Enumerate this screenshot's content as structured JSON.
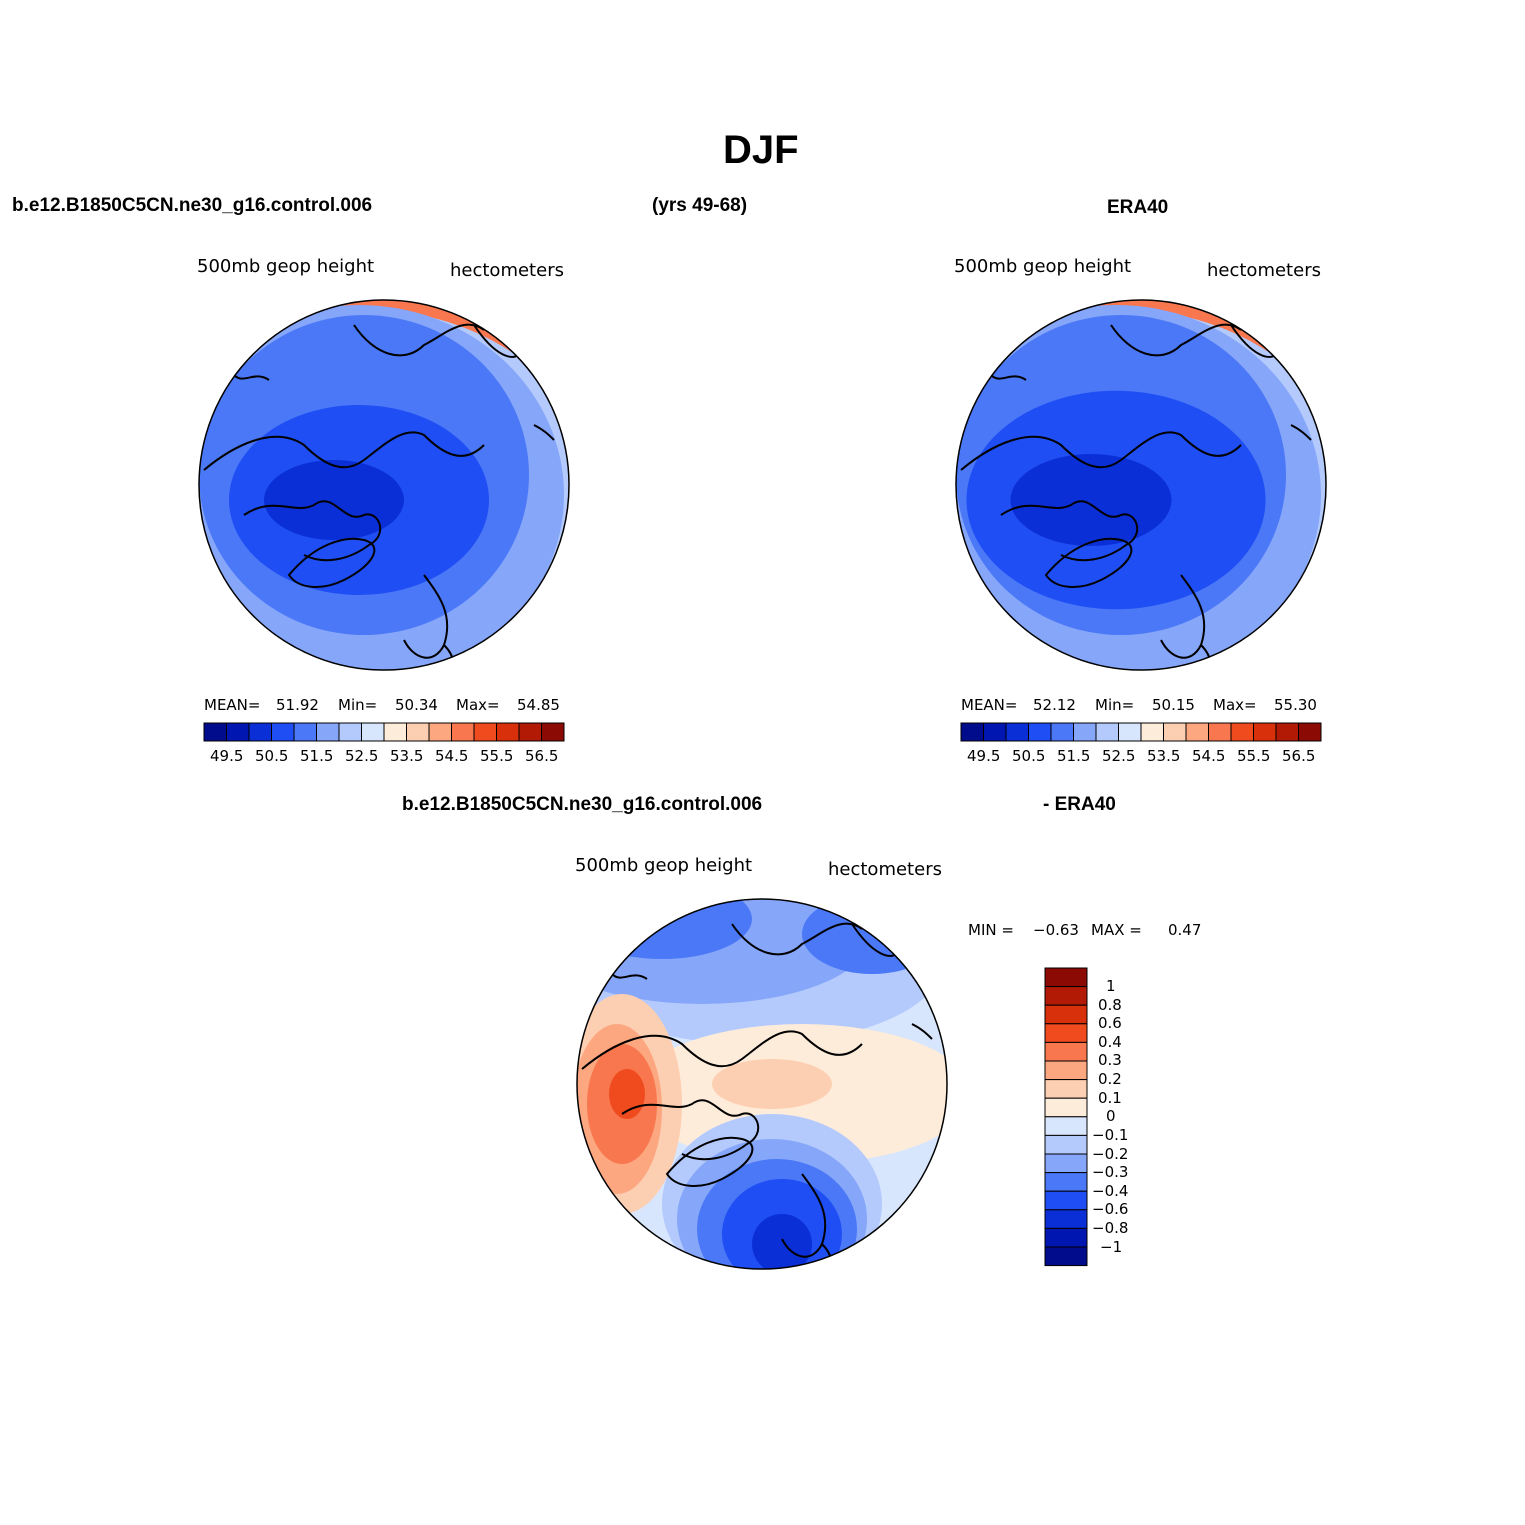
{
  "chart_data": {
    "type": "contour-map",
    "title": "DJF",
    "season": "DJF",
    "panels": [
      {
        "id": "model",
        "case": "b.e12.B1850C5CN.ne30_g16.control.006",
        "years": "(yrs 49-68)",
        "variable": "500mb geop height",
        "units": "hectometers",
        "stats": {
          "mean_label": "MEAN=",
          "mean": "51.92",
          "min_label": "Min=",
          "min": "50.34",
          "max_label": "Max=",
          "max": "54.85"
        },
        "levels": [
          "49.5",
          "50.5",
          "51.5",
          "52.5",
          "53.5",
          "54.5",
          "55.5",
          "56.5"
        ]
      },
      {
        "id": "obs",
        "case": "ERA40",
        "variable": "500mb geop height",
        "units": "hectometers",
        "stats": {
          "mean_label": "MEAN=",
          "mean": "52.12",
          "min_label": "Min=",
          "min": "50.15",
          "max_label": "Max=",
          "max": "55.30"
        },
        "levels": [
          "49.5",
          "50.5",
          "51.5",
          "52.5",
          "53.5",
          "54.5",
          "55.5",
          "56.5"
        ]
      },
      {
        "id": "diff",
        "case": "b.e12.B1850C5CN.ne30_g16.control.006",
        "case2": "- ERA40",
        "variable": "500mb geop height",
        "units": "hectometers",
        "stats": {
          "min_label": "MIN =",
          "min": "−0.63",
          "max_label": "MAX =",
          "max": "0.47"
        },
        "levels": [
          "1",
          "0.8",
          "0.6",
          "0.4",
          "0.3",
          "0.2",
          "0.1",
          "0",
          "−0.1",
          "−0.2",
          "−0.3",
          "−0.4",
          "−0.6",
          "−0.8",
          "−1"
        ]
      }
    ],
    "colors": {
      "scale16": [
        "#000c8c",
        "#0016b0",
        "#0a2fd6",
        "#1f4ef4",
        "#4a78f6",
        "#86a6fa",
        "#b4cafc",
        "#d8e6fd",
        "#feecda",
        "#fdcfb2",
        "#fca780",
        "#f8774e",
        "#f04b1e",
        "#d8300a",
        "#b21a06",
        "#8c0a04"
      ],
      "coast": "#000000"
    }
  }
}
